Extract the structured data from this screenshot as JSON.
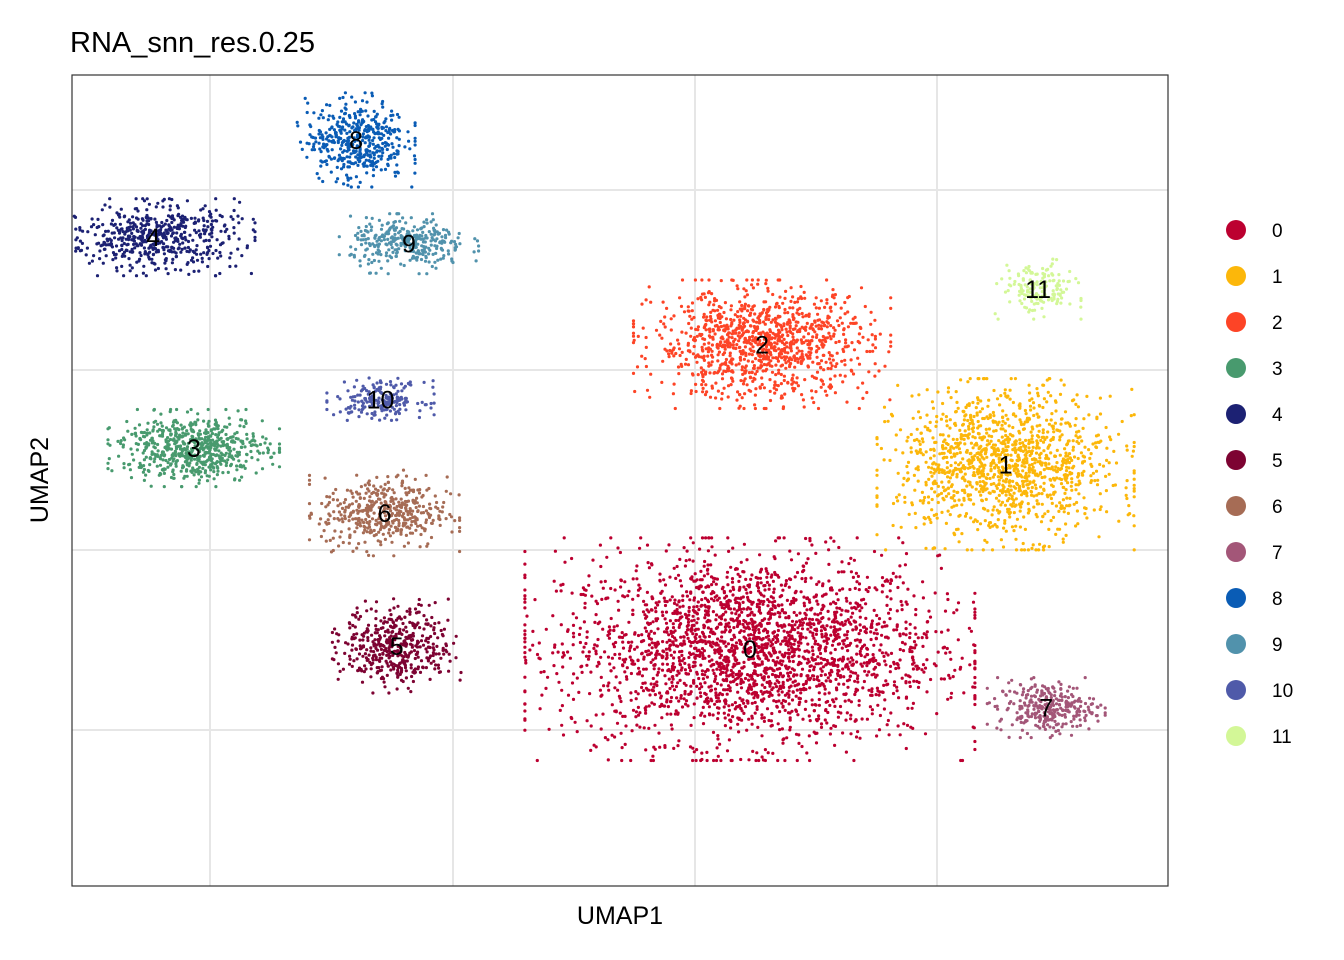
{
  "chart_data": {
    "type": "scatter",
    "title": "RNA_snn_res.0.25",
    "xlabel": "UMAP1",
    "ylabel": "UMAP2",
    "xlim": [
      -14,
      13
    ],
    "ylim": [
      -12,
      13
    ],
    "grid": true,
    "legend_position": "right",
    "clusters": [
      {
        "name": "0",
        "color": "#BC0030",
        "center": [
          2.7,
          -4.7
        ],
        "spread": [
          4.2,
          2.6
        ],
        "points": 2600
      },
      {
        "name": "1",
        "color": "#FCB70A",
        "center": [
          9.0,
          1.0
        ],
        "spread": [
          2.4,
          2.0
        ],
        "points": 1300
      },
      {
        "name": "2",
        "color": "#FD4426",
        "center": [
          3.0,
          4.7
        ],
        "spread": [
          2.4,
          1.5
        ],
        "points": 1100
      },
      {
        "name": "3",
        "color": "#489A6E",
        "center": [
          -11.0,
          1.5
        ],
        "spread": [
          1.6,
          0.9
        ],
        "points": 650
      },
      {
        "name": "4",
        "color": "#1C2173",
        "center": [
          -12.0,
          8.0
        ],
        "spread": [
          1.9,
          0.9
        ],
        "points": 550
      },
      {
        "name": "5",
        "color": "#7D0332",
        "center": [
          -6.0,
          -4.6
        ],
        "spread": [
          1.2,
          1.1
        ],
        "points": 450
      },
      {
        "name": "6",
        "color": "#A66C55",
        "center": [
          -6.3,
          -0.5
        ],
        "spread": [
          1.4,
          1.0
        ],
        "points": 450
      },
      {
        "name": "7",
        "color": "#A35678",
        "center": [
          10.0,
          -6.5
        ],
        "spread": [
          1.1,
          0.7
        ],
        "points": 300
      },
      {
        "name": "8",
        "color": "#0A5CB5",
        "center": [
          -7.0,
          11.0
        ],
        "spread": [
          1.1,
          1.1
        ],
        "points": 450
      },
      {
        "name": "9",
        "color": "#5192AC",
        "center": [
          -5.7,
          7.8
        ],
        "spread": [
          1.3,
          0.7
        ],
        "points": 330
      },
      {
        "name": "10",
        "color": "#4F5AA9",
        "center": [
          -6.4,
          3.0
        ],
        "spread": [
          1.0,
          0.5
        ],
        "points": 200
      },
      {
        "name": "11",
        "color": "#D3F797",
        "center": [
          9.8,
          6.4
        ],
        "spread": [
          0.8,
          0.7
        ],
        "points": 170
      }
    ]
  }
}
